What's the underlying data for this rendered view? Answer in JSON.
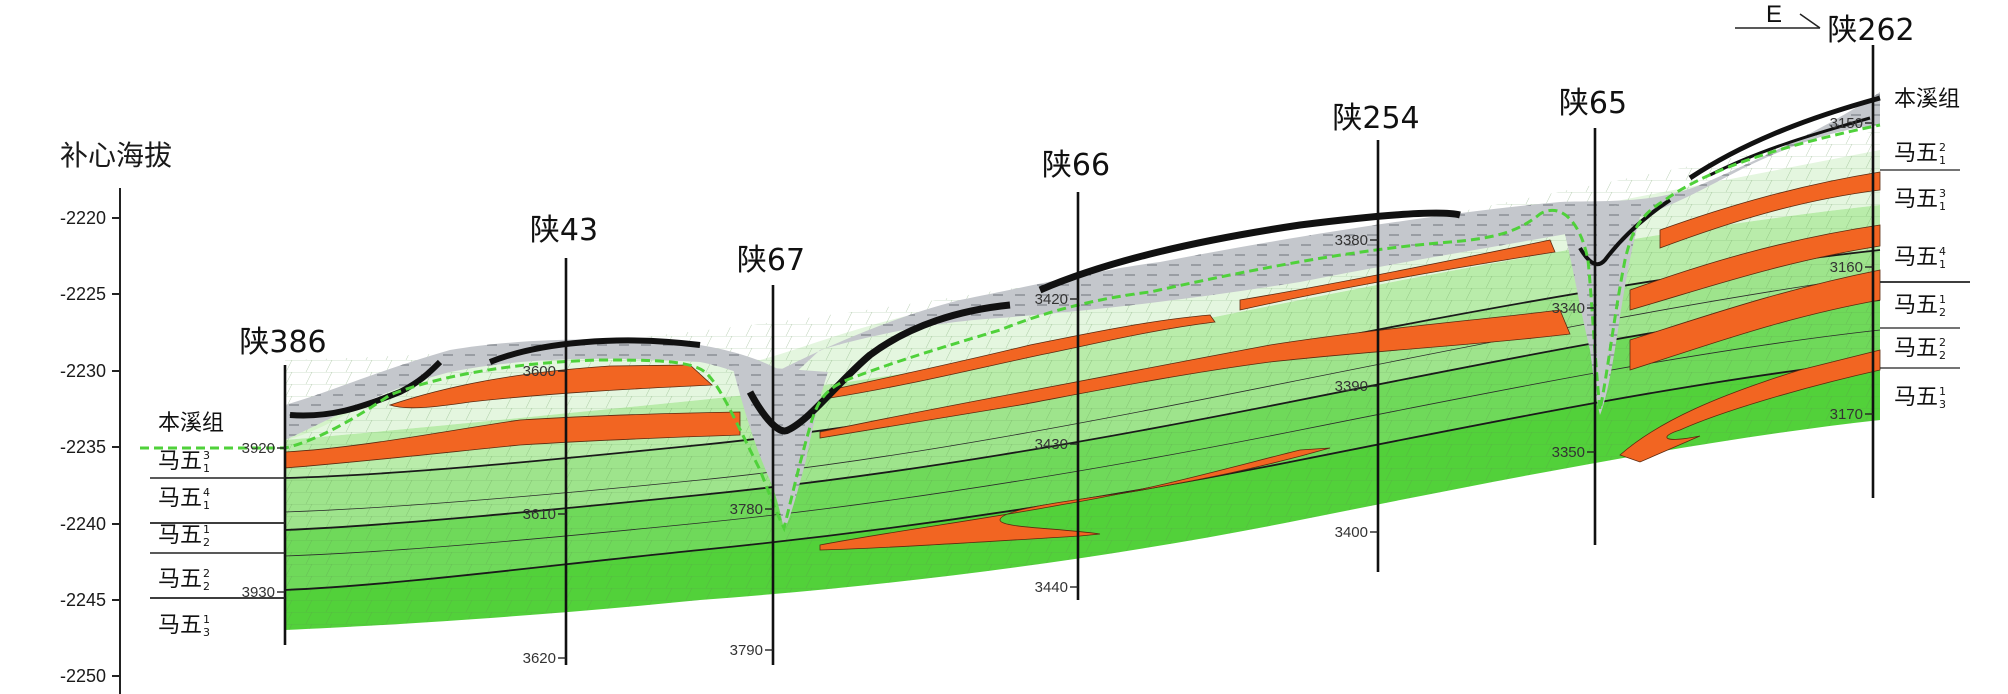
{
  "axis": {
    "title": "补心海拔",
    "ticks": [
      "-2220",
      "-2225",
      "-2230",
      "-2235",
      "-2240",
      "-2245",
      "-2250"
    ]
  },
  "direction": "E",
  "wells": [
    {
      "name": "陕386",
      "depths": [
        "3920",
        "3930"
      ]
    },
    {
      "name": "陕43",
      "depths": [
        "3600",
        "3610",
        "3620"
      ]
    },
    {
      "name": "陕67",
      "depths": [
        "3780",
        "3790"
      ]
    },
    {
      "name": "陕66",
      "depths": [
        "3420",
        "3430",
        "3440"
      ]
    },
    {
      "name": "陕254",
      "depths": [
        "3380",
        "3390",
        "3400"
      ]
    },
    {
      "name": "陕65",
      "depths": [
        "3340",
        "3350"
      ]
    },
    {
      "name": "陕262",
      "depths": [
        "3150",
        "3160",
        "3170"
      ]
    }
  ],
  "left_layers": [
    {
      "base": "本溪组",
      "sup": "",
      "sub": ""
    },
    {
      "base": "马五",
      "sup": "3",
      "sub": "1"
    },
    {
      "base": "马五",
      "sup": "4",
      "sub": "1"
    },
    {
      "base": "马五",
      "sup": "1",
      "sub": "2"
    },
    {
      "base": "马五",
      "sup": "2",
      "sub": "2"
    },
    {
      "base": "马五",
      "sup": "1",
      "sub": "3"
    }
  ],
  "right_layers": [
    {
      "base": "本溪组",
      "sup": "",
      "sub": ""
    },
    {
      "base": "马五",
      "sup": "2",
      "sub": "1"
    },
    {
      "base": "马五",
      "sup": "3",
      "sub": "1"
    },
    {
      "base": "马五",
      "sup": "4",
      "sub": "1"
    },
    {
      "base": "马五",
      "sup": "1",
      "sub": "2"
    },
    {
      "base": "马五",
      "sup": "2",
      "sub": "2"
    },
    {
      "base": "马五",
      "sup": "1",
      "sub": "3"
    }
  ],
  "colors": {
    "benxi_gray": "#c4c7cc",
    "coal_black": "#111111",
    "dolomite_pale": "#e4f6df",
    "layer_light": "#c9efbd",
    "layer_mid": "#9ee48c",
    "layer_deep": "#6fd95a",
    "layer_base": "#52d13a",
    "orange_bed": "#f26522",
    "unconformity": "#4fd13a"
  }
}
